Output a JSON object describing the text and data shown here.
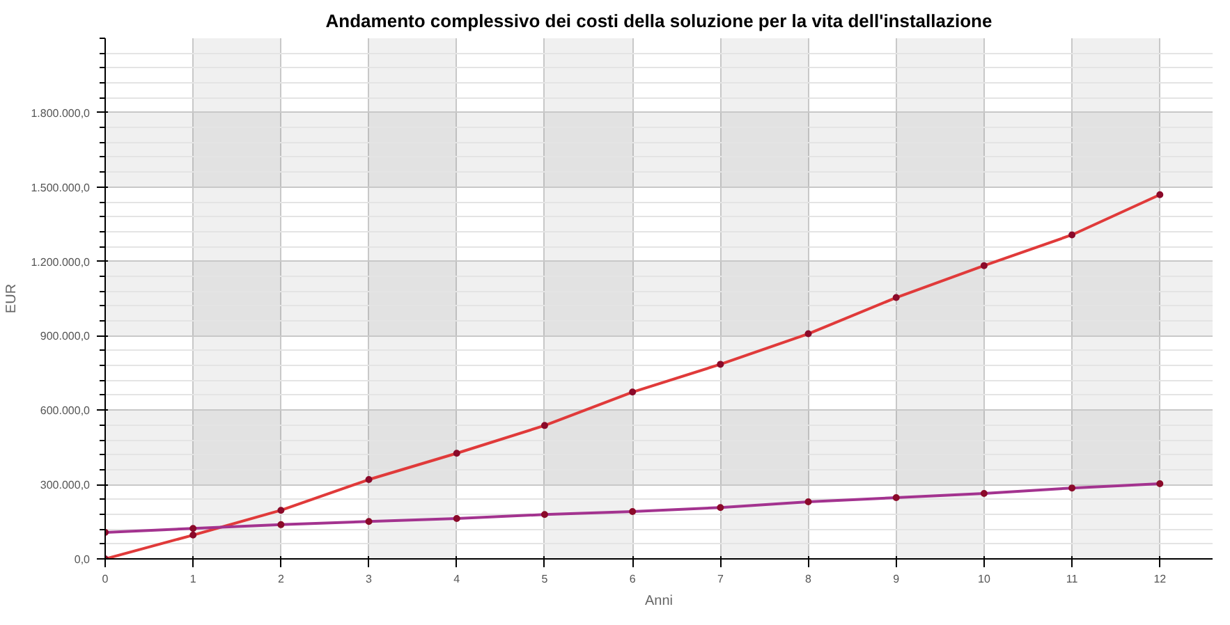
{
  "chart_data": {
    "type": "line",
    "title": "Andamento complessivo dei costi della soluzione per la vita dell'installazione",
    "xlabel": "Anni",
    "ylabel": "EUR",
    "x": [
      0,
      1,
      2,
      3,
      4,
      5,
      6,
      7,
      8,
      9,
      10,
      11,
      12
    ],
    "series": [
      {
        "color": "#e03a3a",
        "values": [
          0,
          96000,
          196000,
          320000,
          426000,
          538000,
          673000,
          785000,
          908000,
          1054000,
          1183000,
          1307000,
          1469000
        ]
      },
      {
        "color": "#a3338f",
        "values": [
          107000,
          123000,
          138000,
          151000,
          163000,
          179000,
          191000,
          207000,
          230000,
          247000,
          264000,
          286000,
          303000
        ]
      }
    ],
    "xlim": [
      0,
      12.6
    ],
    "ylim": [
      0,
      2100000
    ],
    "xticks": [
      0,
      1,
      2,
      3,
      4,
      5,
      6,
      7,
      8,
      9,
      10,
      11,
      12
    ],
    "yticks": [
      {
        "value": 0,
        "label": "0,0"
      },
      {
        "value": 300000,
        "label": "300.000,0"
      },
      {
        "value": 600000,
        "label": "600.000,0"
      },
      {
        "value": 900000,
        "label": "900.000,0"
      },
      {
        "value": 1200000,
        "label": "1.200.000,0"
      },
      {
        "value": 1500000,
        "label": "1.500.000,0"
      },
      {
        "value": 1800000,
        "label": "1.800.000,0"
      }
    ],
    "grid": true,
    "marker": "circle",
    "line_style": "solid"
  }
}
